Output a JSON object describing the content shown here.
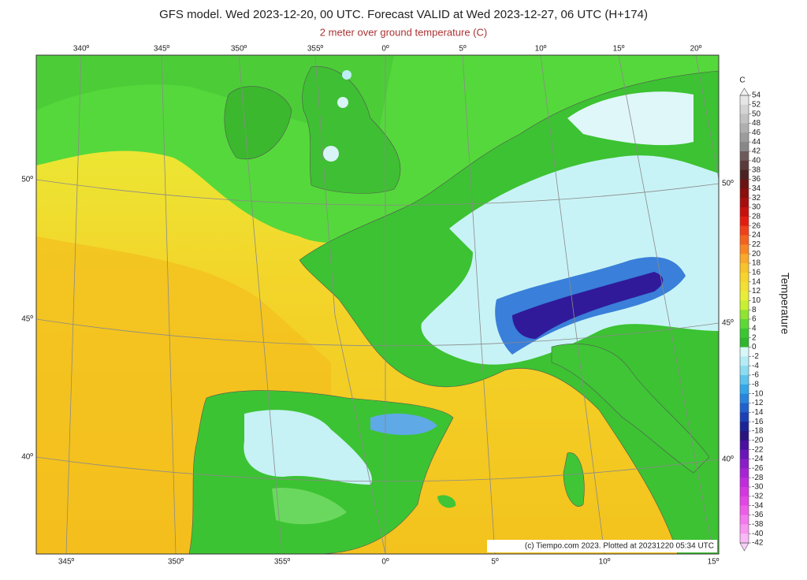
{
  "title": "GFS model. Wed 2023-12-20, 00 UTC. Forecast VALID at Wed 2023-12-27, 06 UTC (H+174)",
  "subtitle": "2 meter over ground temperature (C)",
  "credit": "(c) Tiempo.com 2023. Plotted at 20231220 05:34 UTC",
  "top_labels": [
    "340º",
    "345º",
    "350º",
    "355º",
    "0º",
    "5º",
    "10º",
    "15º",
    "20º"
  ],
  "bottom_labels": [
    "345º",
    "350º",
    "355º",
    "0º",
    "5º",
    "10º",
    "15º"
  ],
  "left_labels": [
    "50º",
    "45º",
    "40º"
  ],
  "right_labels": [
    "50º",
    "45º",
    "40º"
  ],
  "colorbar": {
    "unit": "C",
    "label": "Temperature",
    "ticks": [
      54,
      52,
      50,
      48,
      46,
      44,
      42,
      40,
      38,
      36,
      34,
      32,
      30,
      28,
      26,
      24,
      22,
      20,
      18,
      16,
      14,
      12,
      10,
      8,
      6,
      4,
      2,
      0,
      -2,
      -4,
      -6,
      -8,
      -10,
      -12,
      -14,
      -16,
      -18,
      -20,
      -22,
      -24,
      -26,
      -28,
      -30,
      -32,
      -34,
      -36,
      -38,
      -40,
      -42
    ],
    "colors": [
      "#e6e6e6",
      "#d4d4d4",
      "#c2c2c2",
      "#afafaf",
      "#9c9c9c",
      "#888888",
      "#6e5a5a",
      "#5a3a3a",
      "#4a2222",
      "#6a1414",
      "#8a0f0f",
      "#a80d0d",
      "#c8100e",
      "#e21d10",
      "#f0401a",
      "#f46220",
      "#f78526",
      "#f9a82a",
      "#f7c22a",
      "#f7d42c",
      "#f2e032",
      "#e8ee36",
      "#c8f032",
      "#8ee430",
      "#5ed836",
      "#3bc732",
      "#2fb52e",
      "#d6f6f8",
      "#b4ecf4",
      "#8cdcf0",
      "#5cc4ec",
      "#34a6e6",
      "#2a84dc",
      "#2260cc",
      "#1c40b4",
      "#1a2496",
      "#2a1480",
      "#4a10a0",
      "#6a16b8",
      "#8a1ec8",
      "#a624d4",
      "#c02cdc",
      "#d436e0",
      "#e246e4",
      "#ec5ee8",
      "#f27aee",
      "#f698f2",
      "#f9b8f6"
    ]
  }
}
